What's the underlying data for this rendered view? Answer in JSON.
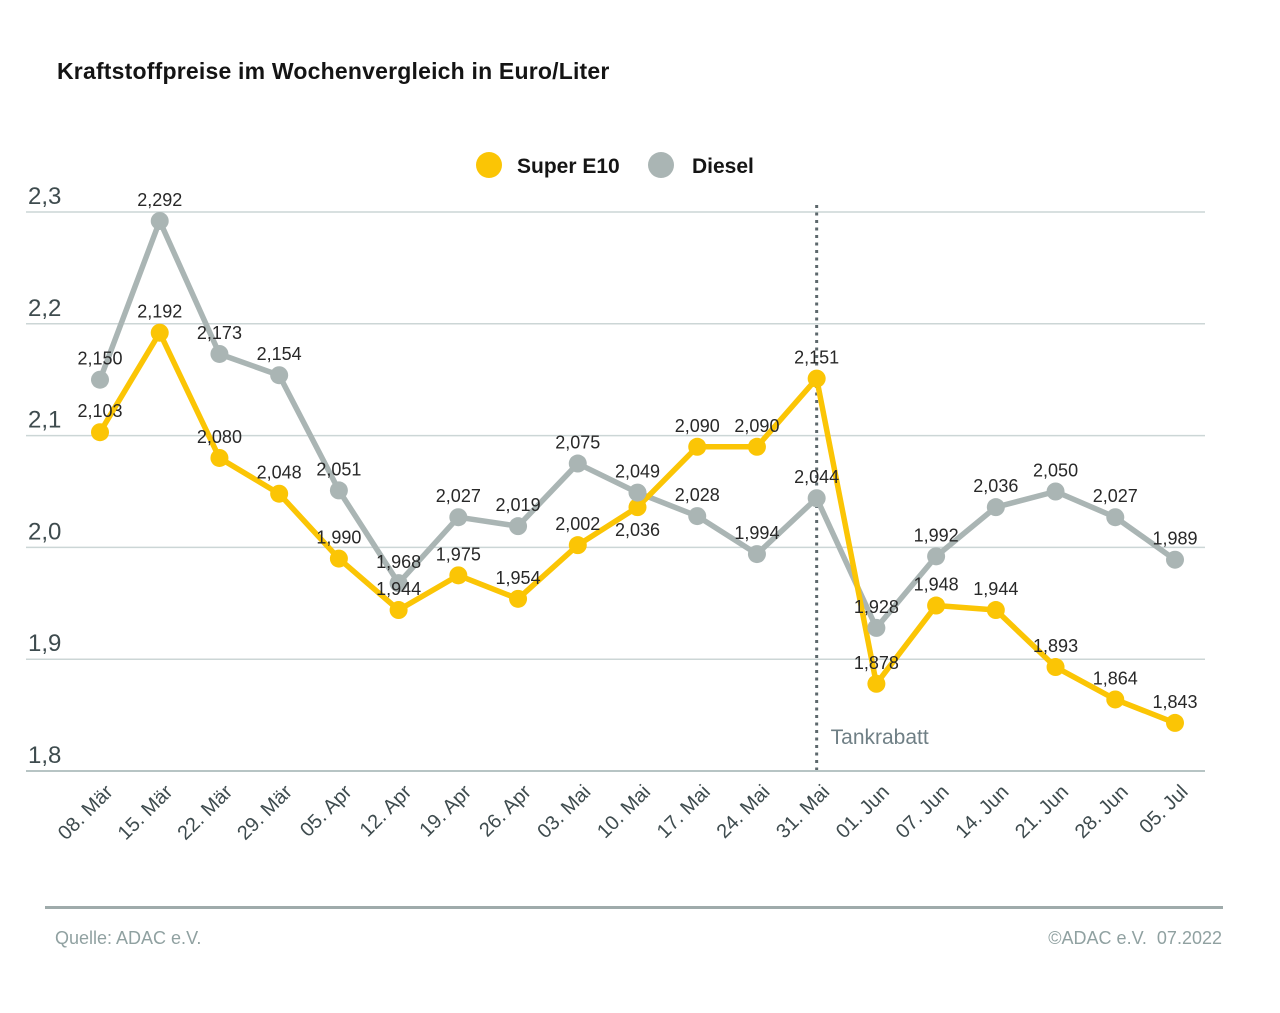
{
  "header": {
    "title": "Kraftstoffpreise im Wochenvergleich in Euro/Liter"
  },
  "chart_data": {
    "type": "line",
    "title": "Kraftstoffpreise im Wochenvergleich in Euro/Liter",
    "unit": "Euro/Liter",
    "categories": [
      "08. Mär",
      "15. Mär",
      "22. Mär",
      "29. Mär",
      "05. Apr",
      "12. Apr",
      "19. Apr",
      "26. Apr",
      "03. Mai",
      "10. Mai",
      "17. Mai",
      "24. Mai",
      "31. Mai",
      "01. Jun",
      "07. Jun",
      "14. Jun",
      "21. Jun",
      "28. Jun",
      "05. Jul"
    ],
    "series": [
      {
        "name": "Super E10",
        "color": "#fbc505",
        "values": [
          2.103,
          2.192,
          2.08,
          2.048,
          1.99,
          1.944,
          1.975,
          1.954,
          2.002,
          2.036,
          2.09,
          2.09,
          2.151,
          1.878,
          1.948,
          1.944,
          1.893,
          1.864,
          1.843
        ]
      },
      {
        "name": "Diesel",
        "color": "#aab5b4",
        "values": [
          2.15,
          2.292,
          2.173,
          2.154,
          2.051,
          1.968,
          2.027,
          2.019,
          2.075,
          2.049,
          2.028,
          1.994,
          2.044,
          1.928,
          1.992,
          2.036,
          2.05,
          2.027,
          1.989
        ]
      }
    ],
    "ylim": [
      1.8,
      2.3
    ],
    "yticks": [
      2.3,
      2.2,
      2.1,
      2.0,
      1.9,
      1.8
    ],
    "ytick_labels": [
      "2,3",
      "2,2",
      "2,1",
      "2,0",
      "1,9",
      "1,8"
    ],
    "grid": "horizontal",
    "legend_position": "top-center",
    "value_label_format": "comma-decimal, 3 places",
    "annotation": {
      "label": "Tankrabatt",
      "category": "31. Mai",
      "style": "dotted-vertical-line",
      "line_color": "#5d686c",
      "label_color": "#6f7f85"
    }
  },
  "footer": {
    "source": "Quelle: ADAC e.V.",
    "copyright": "©ADAC e.V.  07.2022"
  }
}
